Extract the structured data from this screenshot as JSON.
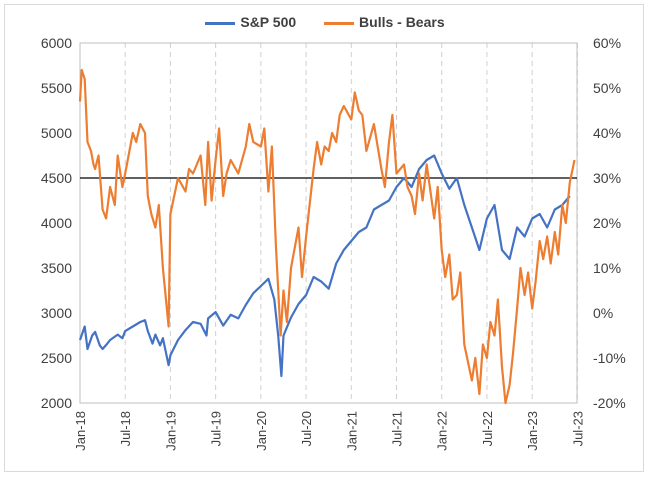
{
  "chart_data": {
    "type": "line",
    "title": "",
    "legend_position": "top",
    "grid": "vertical dashed",
    "reference_line": {
      "axis": "right",
      "value": 30
    },
    "x_range": [
      "2018-01",
      "2023-06"
    ],
    "x_tick_labels": [
      "Jan-18",
      "Jul-18",
      "Jan-19",
      "Jul-19",
      "Jan-20",
      "Jul-20",
      "Jan-21",
      "Jul-21",
      "Jan-22",
      "Jul-22",
      "Jan-23",
      "Jul-23"
    ],
    "y_left": {
      "min": 2000,
      "max": 6000,
      "step": 500,
      "tick_labels": [
        "2000",
        "2500",
        "3000",
        "3500",
        "4000",
        "4500",
        "5000",
        "5500",
        "6000"
      ]
    },
    "y_right": {
      "min": -20,
      "max": 60,
      "step": 10,
      "tick_labels": [
        "-20%",
        "-10%",
        "0%",
        "10%",
        "20%",
        "30%",
        "40%",
        "50%",
        "60%"
      ]
    },
    "series": [
      {
        "name": "S&P 500",
        "axis": "left",
        "color": "#4472c4",
        "points": [
          [
            "2018-01",
            2700
          ],
          [
            "2018-01-20",
            2850
          ],
          [
            "2018-02",
            2600
          ],
          [
            "2018-02-20",
            2750
          ],
          [
            "2018-03",
            2790
          ],
          [
            "2018-03-20",
            2640
          ],
          [
            "2018-04",
            2600
          ],
          [
            "2018-04-20",
            2660
          ],
          [
            "2018-05",
            2700
          ],
          [
            "2018-06",
            2760
          ],
          [
            "2018-06-20",
            2720
          ],
          [
            "2018-07",
            2800
          ],
          [
            "2018-08",
            2850
          ],
          [
            "2018-09",
            2900
          ],
          [
            "2018-09-20",
            2920
          ],
          [
            "2018-10",
            2800
          ],
          [
            "2018-10-20",
            2660
          ],
          [
            "2018-11",
            2760
          ],
          [
            "2018-11-20",
            2640
          ],
          [
            "2018-12",
            2720
          ],
          [
            "2018-12-24",
            2420
          ],
          [
            "2019-01",
            2530
          ],
          [
            "2019-02",
            2700
          ],
          [
            "2019-03",
            2810
          ],
          [
            "2019-04",
            2900
          ],
          [
            "2019-05",
            2880
          ],
          [
            "2019-05-25",
            2750
          ],
          [
            "2019-06",
            2940
          ],
          [
            "2019-07",
            3010
          ],
          [
            "2019-08",
            2860
          ],
          [
            "2019-09",
            2980
          ],
          [
            "2019-10",
            2940
          ],
          [
            "2019-11",
            3090
          ],
          [
            "2019-12",
            3220
          ],
          [
            "2020-01",
            3300
          ],
          [
            "2020-02",
            3380
          ],
          [
            "2020-02-25",
            3150
          ],
          [
            "2020-03-10",
            2750
          ],
          [
            "2020-03-23",
            2300
          ],
          [
            "2020-04",
            2750
          ],
          [
            "2020-05",
            2950
          ],
          [
            "2020-06",
            3100
          ],
          [
            "2020-07",
            3200
          ],
          [
            "2020-08",
            3400
          ],
          [
            "2020-09",
            3350
          ],
          [
            "2020-10",
            3270
          ],
          [
            "2020-11",
            3550
          ],
          [
            "2020-12",
            3700
          ],
          [
            "2021-01",
            3800
          ],
          [
            "2021-02",
            3900
          ],
          [
            "2021-03",
            3950
          ],
          [
            "2021-04",
            4150
          ],
          [
            "2021-05",
            4200
          ],
          [
            "2021-06",
            4250
          ],
          [
            "2021-07",
            4400
          ],
          [
            "2021-08",
            4500
          ],
          [
            "2021-09",
            4400
          ],
          [
            "2021-10",
            4600
          ],
          [
            "2021-11",
            4700
          ],
          [
            "2021-12",
            4750
          ],
          [
            "2022-01",
            4550
          ],
          [
            "2022-02",
            4380
          ],
          [
            "2022-03",
            4500
          ],
          [
            "2022-04",
            4200
          ],
          [
            "2022-05",
            3950
          ],
          [
            "2022-06",
            3700
          ],
          [
            "2022-07",
            4050
          ],
          [
            "2022-08",
            4200
          ],
          [
            "2022-09",
            3700
          ],
          [
            "2022-10",
            3600
          ],
          [
            "2022-11",
            3950
          ],
          [
            "2022-12",
            3850
          ],
          [
            "2023-01",
            4050
          ],
          [
            "2023-02",
            4100
          ],
          [
            "2023-03",
            3950
          ],
          [
            "2023-04",
            4150
          ],
          [
            "2023-05",
            4200
          ],
          [
            "2023-06",
            4300
          ]
        ]
      },
      {
        "name": "Bulls - Bears",
        "axis": "right",
        "color": "#ed7d31",
        "points": [
          [
            "2018-01",
            47
          ],
          [
            "2018-01-08",
            54
          ],
          [
            "2018-01-20",
            52
          ],
          [
            "2018-02",
            38
          ],
          [
            "2018-02-15",
            36
          ],
          [
            "2018-02-25",
            33
          ],
          [
            "2018-03",
            32
          ],
          [
            "2018-03-15",
            35
          ],
          [
            "2018-04",
            23
          ],
          [
            "2018-04-15",
            21
          ],
          [
            "2018-05",
            28
          ],
          [
            "2018-05-20",
            24
          ],
          [
            "2018-06",
            35
          ],
          [
            "2018-06-20",
            28
          ],
          [
            "2018-07",
            31
          ],
          [
            "2018-08",
            40
          ],
          [
            "2018-08-15",
            38
          ],
          [
            "2018-09",
            42
          ],
          [
            "2018-09-20",
            40
          ],
          [
            "2018-10",
            26
          ],
          [
            "2018-10-15",
            22
          ],
          [
            "2018-11",
            19
          ],
          [
            "2018-11-15",
            24
          ],
          [
            "2018-12",
            10
          ],
          [
            "2018-12-24",
            -3
          ],
          [
            "2019-01",
            22
          ],
          [
            "2019-02",
            30
          ],
          [
            "2019-03",
            27
          ],
          [
            "2019-03-15",
            32
          ],
          [
            "2019-04",
            31
          ],
          [
            "2019-05",
            35
          ],
          [
            "2019-05-20",
            24
          ],
          [
            "2019-06",
            38
          ],
          [
            "2019-06-15",
            25
          ],
          [
            "2019-07",
            34
          ],
          [
            "2019-07-15",
            41
          ],
          [
            "2019-08",
            26
          ],
          [
            "2019-08-15",
            31
          ],
          [
            "2019-09",
            34
          ],
          [
            "2019-10",
            31
          ],
          [
            "2019-11",
            37
          ],
          [
            "2019-11-15",
            42
          ],
          [
            "2019-12",
            38
          ],
          [
            "2020-01",
            37
          ],
          [
            "2020-01-15",
            41
          ],
          [
            "2020-02",
            27
          ],
          [
            "2020-02-15",
            37
          ],
          [
            "2020-03",
            15
          ],
          [
            "2020-03-20",
            -5
          ],
          [
            "2020-04",
            5
          ],
          [
            "2020-04-15",
            -2
          ],
          [
            "2020-05",
            10
          ],
          [
            "2020-06",
            19
          ],
          [
            "2020-06-15",
            8
          ],
          [
            "2020-07",
            17
          ],
          [
            "2020-08",
            32
          ],
          [
            "2020-08-15",
            38
          ],
          [
            "2020-09",
            33
          ],
          [
            "2020-09-15",
            37
          ],
          [
            "2020-10",
            36
          ],
          [
            "2020-10-15",
            40
          ],
          [
            "2020-11",
            38
          ],
          [
            "2020-11-15",
            44
          ],
          [
            "2020-12",
            46
          ],
          [
            "2021-01",
            43
          ],
          [
            "2021-01-15",
            49
          ],
          [
            "2021-02",
            45
          ],
          [
            "2021-02-15",
            44
          ],
          [
            "2021-03",
            36
          ],
          [
            "2021-04",
            42
          ],
          [
            "2021-05",
            32
          ],
          [
            "2021-05-15",
            28
          ],
          [
            "2021-06",
            38
          ],
          [
            "2021-06-15",
            44
          ],
          [
            "2021-07",
            31
          ],
          [
            "2021-08",
            33
          ],
          [
            "2021-08-15",
            28
          ],
          [
            "2021-09",
            26
          ],
          [
            "2021-09-15",
            22
          ],
          [
            "2021-10",
            31
          ],
          [
            "2021-10-15",
            25
          ],
          [
            "2021-11",
            33
          ],
          [
            "2021-12",
            21
          ],
          [
            "2021-12-15",
            28
          ],
          [
            "2022-01",
            14
          ],
          [
            "2022-01-15",
            8
          ],
          [
            "2022-02",
            13
          ],
          [
            "2022-02-15",
            3
          ],
          [
            "2022-03",
            4
          ],
          [
            "2022-03-15",
            9
          ],
          [
            "2022-04",
            -7
          ],
          [
            "2022-05",
            -15
          ],
          [
            "2022-05-15",
            -10
          ],
          [
            "2022-06",
            -18
          ],
          [
            "2022-06-15",
            -7
          ],
          [
            "2022-07",
            -10
          ],
          [
            "2022-07-15",
            -2
          ],
          [
            "2022-08",
            -5
          ],
          [
            "2022-08-15",
            3
          ],
          [
            "2022-09",
            -12
          ],
          [
            "2022-09-15",
            -20
          ],
          [
            "2022-10",
            -16
          ],
          [
            "2022-10-15",
            -9
          ],
          [
            "2022-11",
            1
          ],
          [
            "2022-11-15",
            10
          ],
          [
            "2022-12",
            4
          ],
          [
            "2022-12-15",
            9
          ],
          [
            "2023-01",
            1
          ],
          [
            "2023-01-15",
            7
          ],
          [
            "2023-02",
            16
          ],
          [
            "2023-02-15",
            12
          ],
          [
            "2023-03",
            17
          ],
          [
            "2023-03-15",
            11
          ],
          [
            "2023-04",
            18
          ],
          [
            "2023-04-15",
            13
          ],
          [
            "2023-05",
            24
          ],
          [
            "2023-05-15",
            20
          ],
          [
            "2023-06",
            29
          ],
          [
            "2023-06-20",
            34
          ]
        ]
      }
    ]
  }
}
